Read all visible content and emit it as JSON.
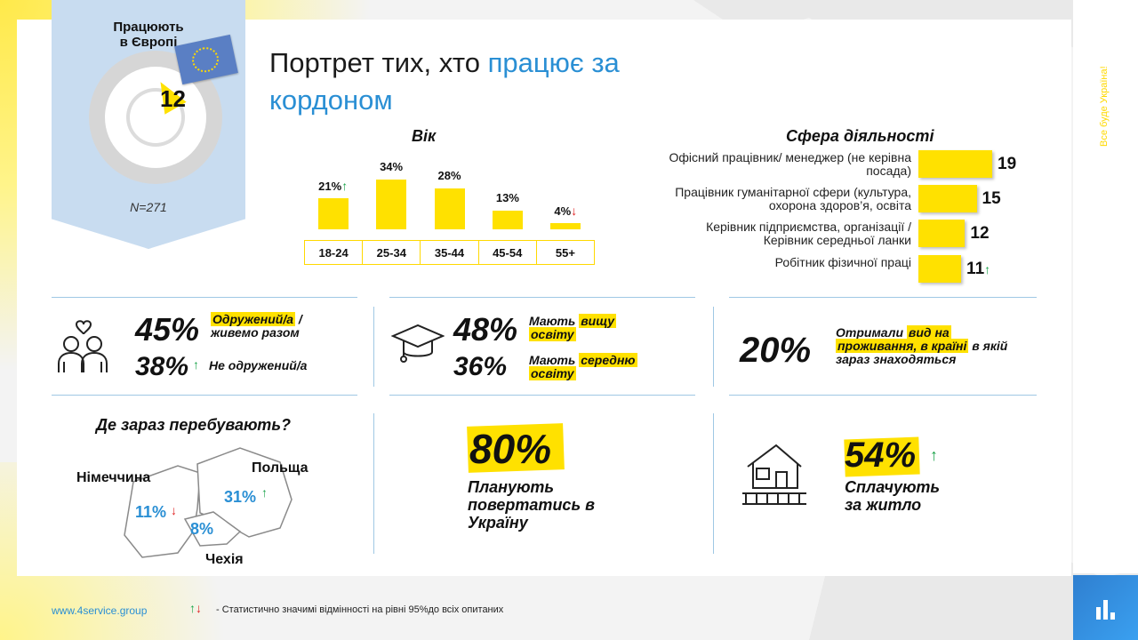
{
  "header": {
    "title_part1": "Портрет тих, хто ",
    "title_highlight": "працює за",
    "title_part2": "кордоном",
    "slogan": "Все буде Україна!"
  },
  "badge": {
    "title_line1": "Працюють",
    "title_line2": "в Європі",
    "value": "12",
    "sample": "N=271"
  },
  "age": {
    "heading": "Вік",
    "bars": [
      {
        "label": "18-24",
        "value_text": "21%",
        "trend": "up",
        "value": 21
      },
      {
        "label": "25-34",
        "value_text": "34%",
        "trend": "",
        "value": 34
      },
      {
        "label": "35-44",
        "value_text": "28%",
        "trend": "",
        "value": 28
      },
      {
        "label": "45-54",
        "value_text": "13%",
        "trend": "",
        "value": 13
      },
      {
        "label": "55+",
        "value_text": "4%",
        "trend": "down",
        "value": 4
      }
    ]
  },
  "sphere": {
    "heading": "Сфера діяльності",
    "items": [
      {
        "label": "Офісний працівник/ менеджер (не керівна посада)",
        "value": "19",
        "trend": ""
      },
      {
        "label": "Працівник гуманітарної сфери (культура, охорона здоров’я, освіта",
        "value": "15",
        "trend": ""
      },
      {
        "label": "Керівник підприємства, організації / Керівник середньої ланки",
        "value": "12",
        "trend": ""
      },
      {
        "label": "Робітник фізичної праці",
        "value": "11",
        "trend": "up"
      }
    ]
  },
  "marital": {
    "p1": "45%",
    "l1a": "Одружений/а",
    "l1b": " /",
    "l1c": "живемо разом",
    "p2": "38%",
    "l2": "Не одружений/а"
  },
  "education": {
    "p1": "48%",
    "l1a": "Мають ",
    "l1b": "вищу",
    "l1c": "освіту",
    "p2": "36%",
    "l2a": "Мають ",
    "l2b": "середню",
    "l2c": "освіту"
  },
  "residence": {
    "p": "20%",
    "l1a": "Отримали ",
    "l1b": "вид на",
    "l2a": "проживання, в країні",
    "l2b": " в якій",
    "l3": "зараз знаходяться"
  },
  "location": {
    "heading": "Де зараз перебувають?",
    "countries": [
      {
        "name": "Німеччина",
        "value": "11%",
        "trend": "down"
      },
      {
        "name": "Польща",
        "value": "31%",
        "trend": "up"
      },
      {
        "name": "Чехія",
        "value": "8%",
        "trend": ""
      }
    ]
  },
  "return": {
    "p": "80%",
    "l1": "Планують",
    "l2": "повертатись в",
    "l3": "Україну"
  },
  "housing": {
    "p": "54%",
    "l1": "Сплачують",
    "l2": "за житло"
  },
  "footer": {
    "url": "www.4service.group",
    "note": "- Статистично значимі відмінності на  рівні  95%до всіх опитаних"
  },
  "colors": {
    "accent": "#ffe100",
    "blue": "#2a8fd4",
    "up": "#1aa34a",
    "down": "#e02020"
  }
}
